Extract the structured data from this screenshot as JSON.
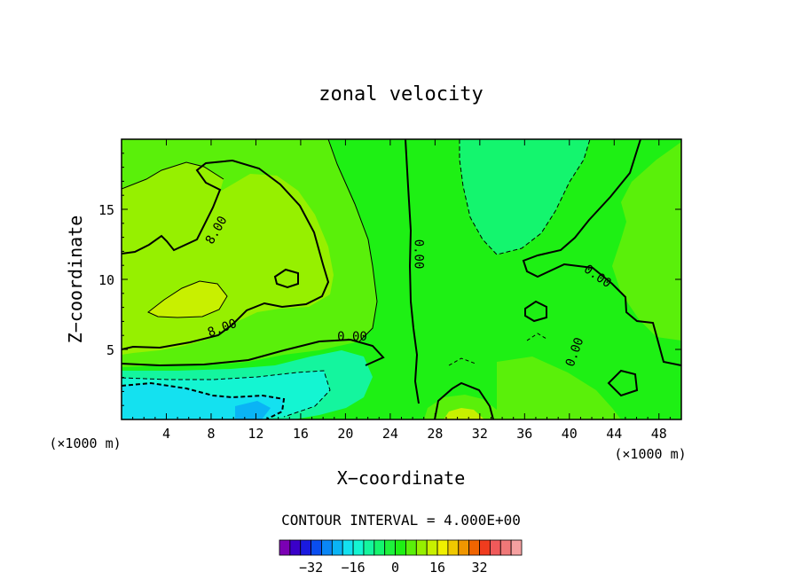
{
  "chart_data": {
    "type": "heatmap",
    "title": "zonal velocity",
    "xlabel": "X−coordinate",
    "ylabel": "Z−coordinate",
    "x_unit_left": "(×1000 m)",
    "x_unit_right": "(×1000 m)",
    "xlim": [
      0,
      50
    ],
    "ylim": [
      0,
      20
    ],
    "xticks": [
      4,
      8,
      12,
      16,
      20,
      24,
      28,
      32,
      36,
      40,
      44,
      48
    ],
    "xtick_labels": [
      "4",
      "8",
      "12",
      "16",
      "20",
      "24",
      "28",
      "32",
      "36",
      "40",
      "44",
      "48"
    ],
    "yticks": [
      5,
      10,
      15
    ],
    "ytick_labels": [
      "5",
      "10",
      "15"
    ],
    "contour_interval_text": "CONTOUR INTERVAL = 4.000E+00",
    "contour_interval": 4,
    "contour_labels": [
      {
        "text": "8.00",
        "x": 8.5,
        "y": 13.5,
        "angle": -60
      },
      {
        "text": "8.00",
        "x": 9.0,
        "y": 6.5,
        "angle": -20
      },
      {
        "text": "0.00",
        "x": 20.6,
        "y": 5.9,
        "angle": 0
      },
      {
        "text": "0.00",
        "x": 26.5,
        "y": 11.8,
        "angle": 90
      },
      {
        "text": "0.00",
        "x": 42.5,
        "y": 10.2,
        "angle": 35
      },
      {
        "text": "0.00",
        "x": 40.5,
        "y": 4.8,
        "angle": -70
      }
    ],
    "colorbar": {
      "colors": [
        "#7b00b4",
        "#3a00c8",
        "#1a1ae0",
        "#0a4ef0",
        "#0a86f5",
        "#0ab4f5",
        "#14e1f0",
        "#14f5d2",
        "#14f59e",
        "#14f56e",
        "#1ef23c",
        "#1ef014",
        "#5af00a",
        "#96f000",
        "#c8f000",
        "#f0f000",
        "#f0c800",
        "#f09600",
        "#f06400",
        "#f03c1e",
        "#f05a5a",
        "#f07878",
        "#f5a0a0"
      ],
      "tick_values": [
        -32,
        -16,
        0,
        16,
        32
      ],
      "tick_labels": [
        "−32",
        "−16",
        "0",
        "16",
        "32"
      ]
    },
    "level_colors": {
      "-16": "#14e1f0",
      "-12": "#14f5d2",
      "-8": "#14f59e",
      "-4": "#14f56e",
      "0": "#1ef014",
      "4": "#5af00a",
      "8": "#96f000",
      "12": "#c8f000",
      "16": "#f0f000",
      "-20": "#0ab4f5",
      "-24": "#0a86f5"
    },
    "regions": [
      {
        "name": "upper-left-weak-positive",
        "level": 4
      },
      {
        "name": "upper-left-positive-lobe",
        "level": 8
      },
      {
        "name": "left-strong-positive-core",
        "level": 12
      },
      {
        "name": "central-zero-band",
        "level": 0
      },
      {
        "name": "upper-right-negative-lobe",
        "level": -4
      },
      {
        "name": "right-positive-lobe",
        "level": 8
      },
      {
        "name": "bottom-left-negative",
        "level": -16
      },
      {
        "name": "bottom-center-positive",
        "level": 12
      }
    ],
    "grid": false
  }
}
